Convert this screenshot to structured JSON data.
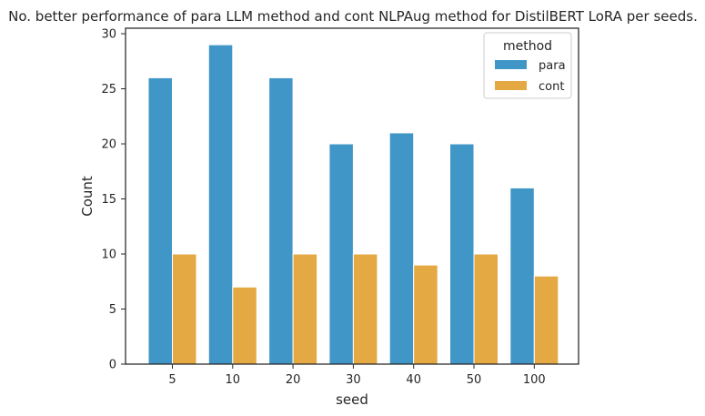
{
  "chart_data": {
    "type": "bar",
    "title": "No. better performance of para LLM method and cont NLPAug method for DistilBERT LoRA per seeds.",
    "xlabel": "seed",
    "ylabel": "Count",
    "categories": [
      "5",
      "10",
      "20",
      "30",
      "40",
      "50",
      "100"
    ],
    "series": [
      {
        "name": "para",
        "values": [
          26,
          29,
          26,
          20,
          21,
          20,
          16
        ],
        "color": "#4196c8"
      },
      {
        "name": "cont",
        "values": [
          10,
          7,
          10,
          10,
          9,
          10,
          8
        ],
        "color": "#e4a943"
      }
    ],
    "ylim": [
      0,
      30.5
    ],
    "yticks": [
      0,
      5,
      10,
      15,
      20,
      25,
      30
    ],
    "grid": false,
    "legend": {
      "title": "method",
      "placement": "top-right"
    }
  }
}
